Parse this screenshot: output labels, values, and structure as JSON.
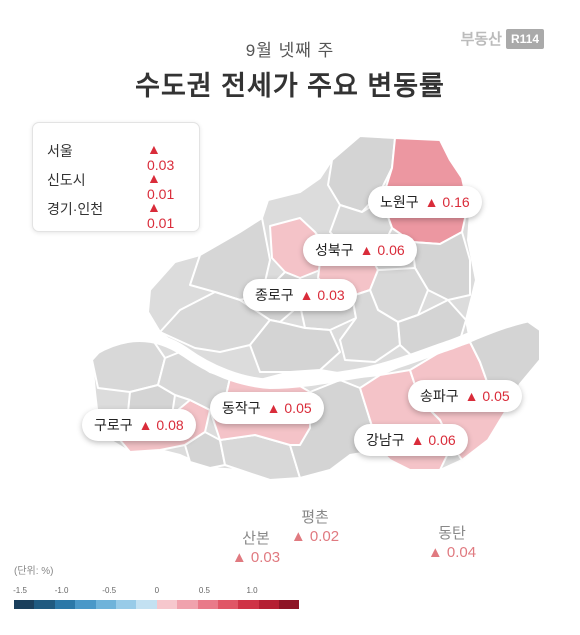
{
  "header": {
    "subtitle": "9월 넷째 주",
    "title": "수도권 전세가 주요 변동률"
  },
  "logo": {
    "text": "부동산",
    "badge": "R114"
  },
  "summary": {
    "rows": [
      {
        "name": "서울",
        "value": "▲ 0.03"
      },
      {
        "name": "신도시",
        "value": "▲ 0.01"
      },
      {
        "name": "경기·인천",
        "value": "▲ 0.01"
      }
    ]
  },
  "districts": {
    "nowon": {
      "name": "노원구",
      "value": "▲ 0.16"
    },
    "seongbuk": {
      "name": "성북구",
      "value": "▲ 0.06"
    },
    "jongno": {
      "name": "종로구",
      "value": "▲ 0.03"
    },
    "songpa": {
      "name": "송파구",
      "value": "▲ 0.05"
    },
    "dongjak": {
      "name": "동작구",
      "value": "▲ 0.05"
    },
    "guro": {
      "name": "구로구",
      "value": "▲ 0.08"
    },
    "gangnam": {
      "name": "강남구",
      "value": "▲ 0.06"
    }
  },
  "new_towns": {
    "pyeongchon": {
      "name": "평촌",
      "value": "▲ 0.02"
    },
    "sanbon": {
      "name": "산본",
      "value": "▲ 0.03"
    },
    "dongtan": {
      "name": "동탄",
      "value": "▲ 0.04"
    }
  },
  "legend": {
    "unit": "(단위: %)",
    "ticks": [
      "-1.5",
      "-1.0",
      "-0.5",
      "0",
      "0.5",
      "1.0"
    ],
    "tick_values": [
      -1.5,
      -1.0,
      -0.5,
      0,
      0.5,
      1.0
    ],
    "range": [
      -1.5,
      1.5
    ],
    "colors": [
      "#1a3f5c",
      "#1f5a80",
      "#2b78a8",
      "#4a98c8",
      "#6fb3da",
      "#98cbe8",
      "#c3e1f2",
      "#f6c7cd",
      "#f0a2ad",
      "#e97a89",
      "#e05666",
      "#cf3346",
      "#b51f33",
      "#8e1425"
    ]
  },
  "colors": {
    "accent": "#d92c3a",
    "map_base": "#dcdcdc",
    "highlight_light": "#f4c3c8",
    "highlight_strong": "#ec97a1"
  }
}
